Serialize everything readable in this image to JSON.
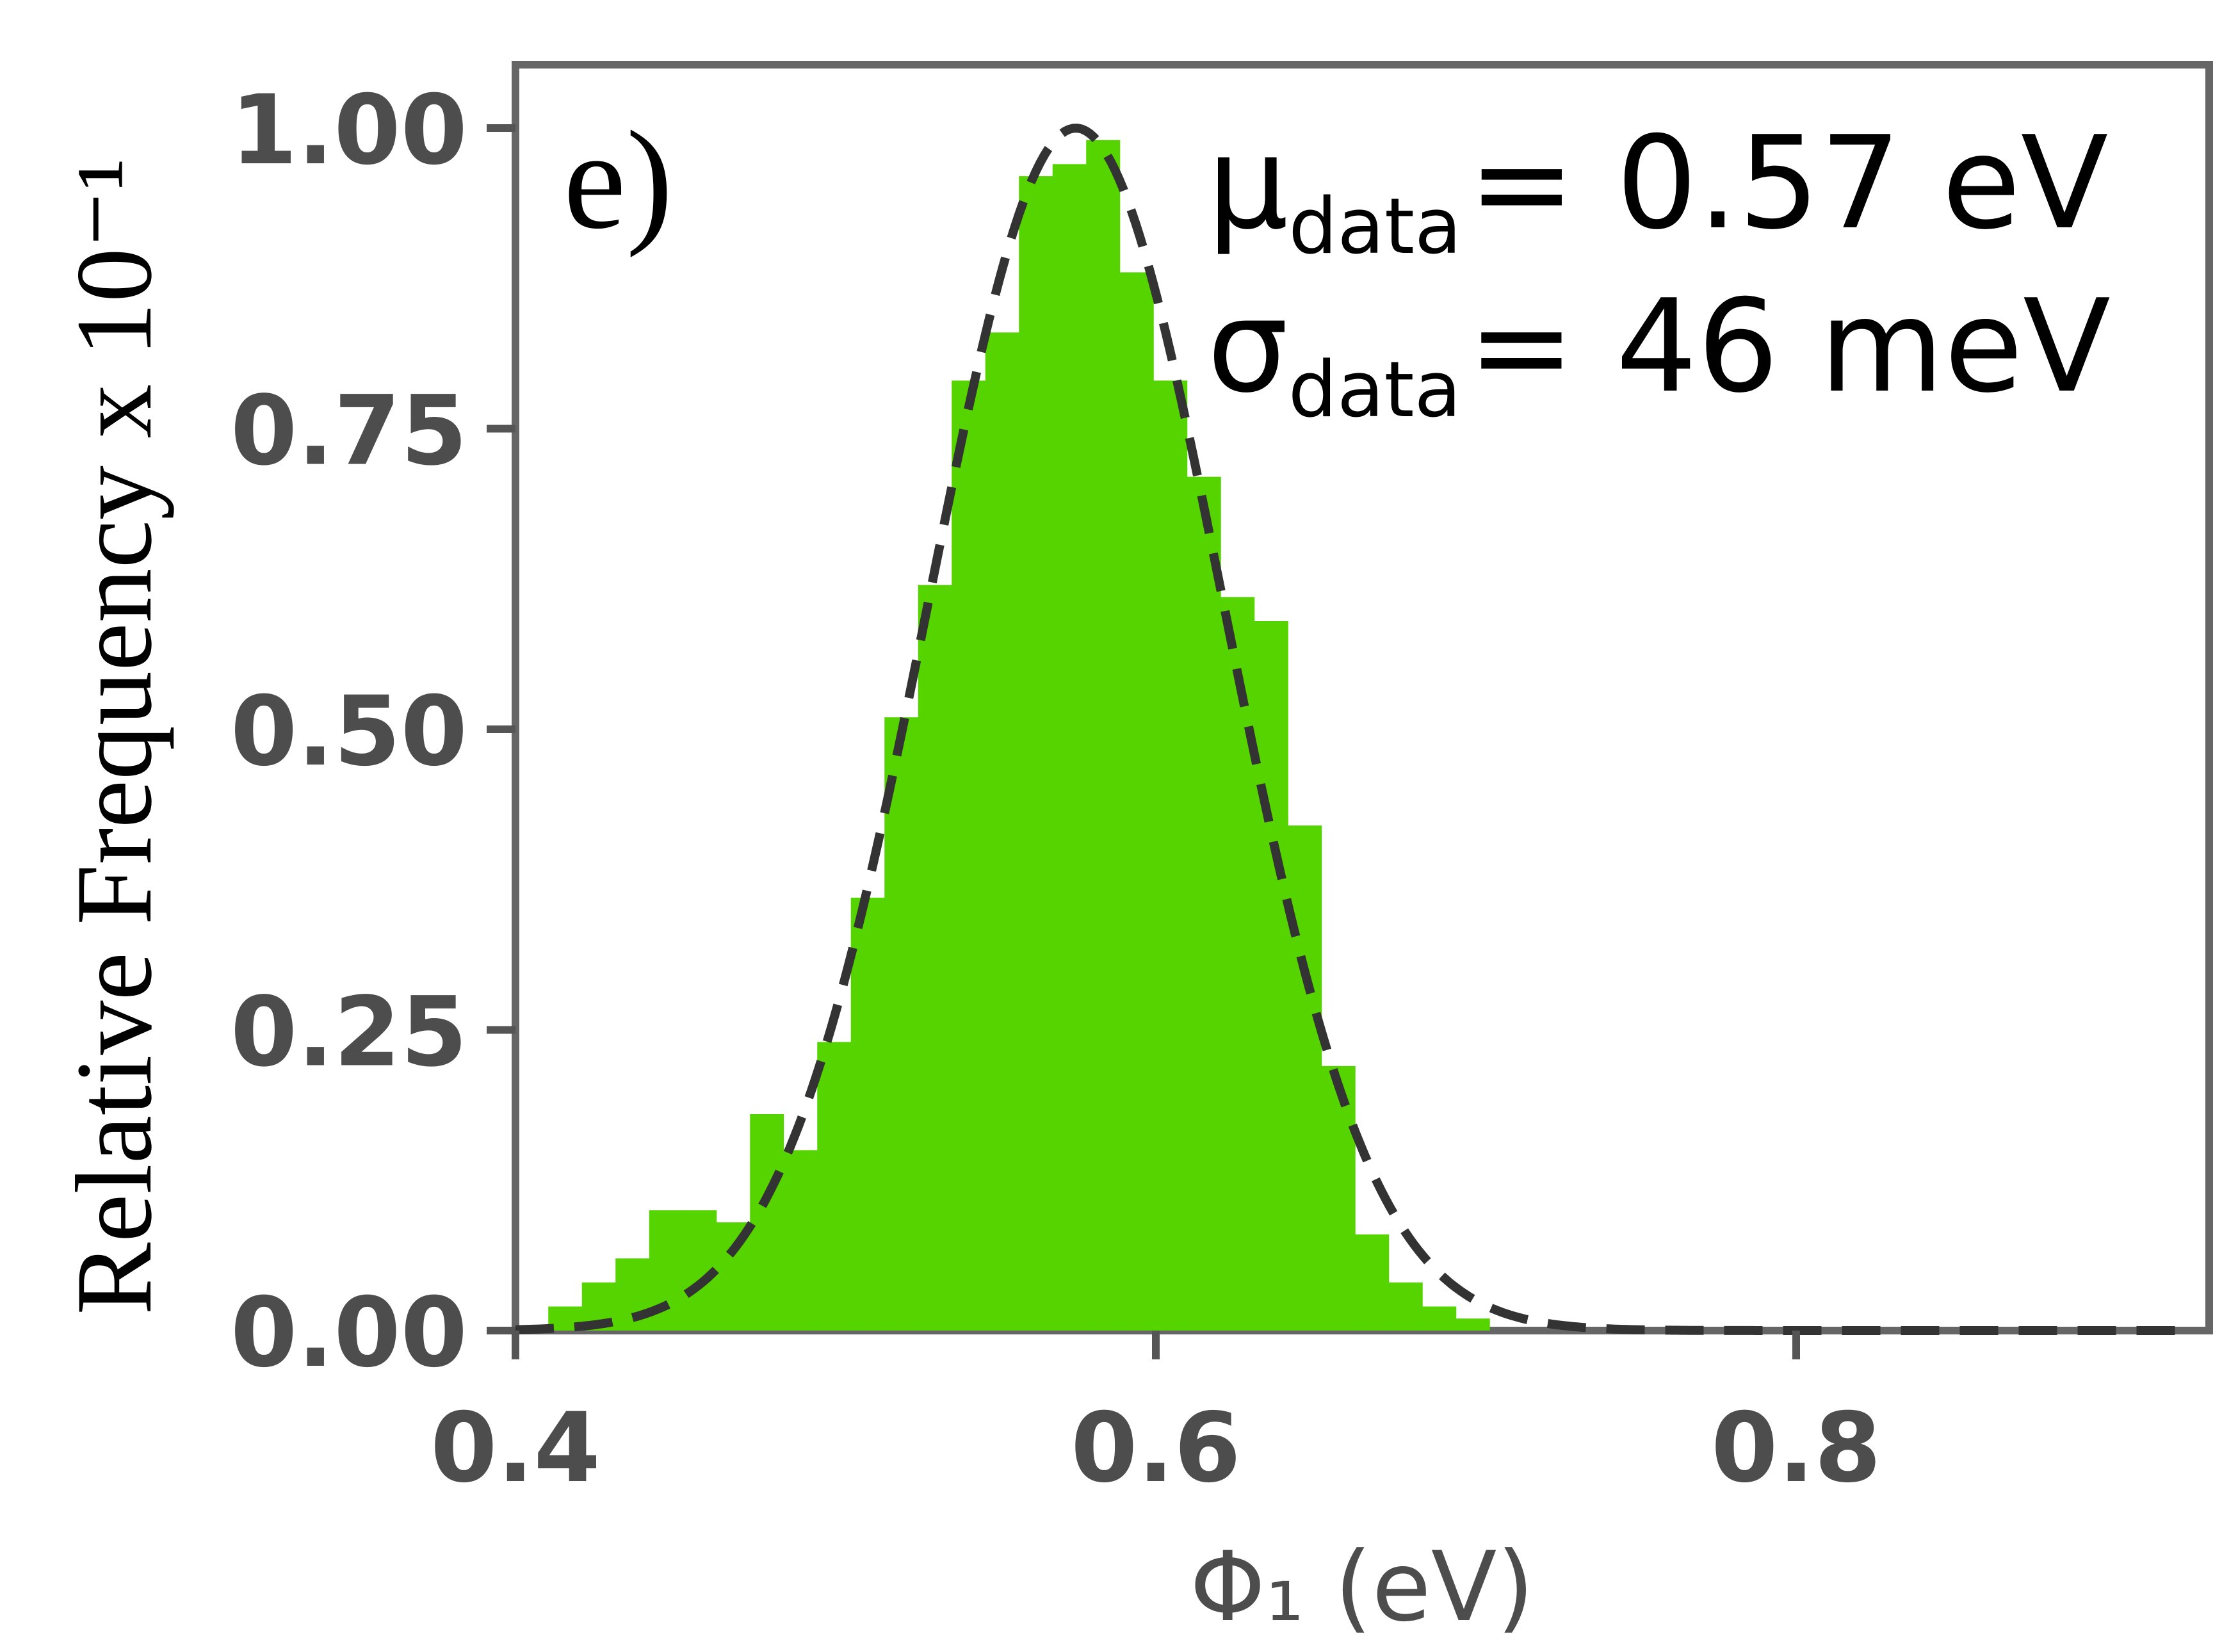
{
  "chart_data": {
    "type": "bar",
    "panel_label": "e)",
    "xlabel": "Φ₁ (eV)",
    "ylabel": "Relative  Frequency  x  10⁻¹",
    "xlim": [
      0.4,
      0.92
    ],
    "ylim": [
      0.0,
      1.0
    ],
    "x_ticks": [
      "0.4",
      "0.6",
      "0.8"
    ],
    "x_tick_values": [
      0.4,
      0.6,
      0.8
    ],
    "y_ticks": [
      "0.00",
      "0.25",
      "0.50",
      "0.75",
      "1.00"
    ],
    "y_tick_values": [
      0.0,
      0.25,
      0.5,
      0.75,
      1.0
    ],
    "grid": false,
    "bar_color": "#55d400",
    "curve_color": "#333333",
    "bin_width": 0.0105,
    "bins": [
      {
        "x": 0.4155,
        "y": 0.02
      },
      {
        "x": 0.426,
        "y": 0.04
      },
      {
        "x": 0.4365,
        "y": 0.06
      },
      {
        "x": 0.447,
        "y": 0.1
      },
      {
        "x": 0.4575,
        "y": 0.1
      },
      {
        "x": 0.468,
        "y": 0.09
      },
      {
        "x": 0.4785,
        "y": 0.18
      },
      {
        "x": 0.489,
        "y": 0.15
      },
      {
        "x": 0.4995,
        "y": 0.24
      },
      {
        "x": 0.51,
        "y": 0.36
      },
      {
        "x": 0.5205,
        "y": 0.51
      },
      {
        "x": 0.531,
        "y": 0.62
      },
      {
        "x": 0.5415,
        "y": 0.79
      },
      {
        "x": 0.552,
        "y": 0.83
      },
      {
        "x": 0.5625,
        "y": 0.96
      },
      {
        "x": 0.573,
        "y": 0.97
      },
      {
        "x": 0.5835,
        "y": 0.99
      },
      {
        "x": 0.594,
        "y": 0.88
      },
      {
        "x": 0.6045,
        "y": 0.79
      },
      {
        "x": 0.615,
        "y": 0.71
      },
      {
        "x": 0.6255,
        "y": 0.61
      },
      {
        "x": 0.636,
        "y": 0.59
      },
      {
        "x": 0.6465,
        "y": 0.42
      },
      {
        "x": 0.657,
        "y": 0.22
      },
      {
        "x": 0.6675,
        "y": 0.08
      },
      {
        "x": 0.678,
        "y": 0.04
      },
      {
        "x": 0.6885,
        "y": 0.02
      },
      {
        "x": 0.699,
        "y": 0.01
      }
    ],
    "fit_curve": {
      "type": "gaussian",
      "mean": 0.575,
      "sigma": 0.046,
      "amplitude": 1.0,
      "style": "dashed"
    },
    "annotations": {
      "mu_symbol": "μ",
      "mu_subscript": "data",
      "mu_value": "= 0.57 eV",
      "sigma_symbol": "σ",
      "sigma_subscript": "data",
      "sigma_value": "= 46 meV"
    }
  }
}
